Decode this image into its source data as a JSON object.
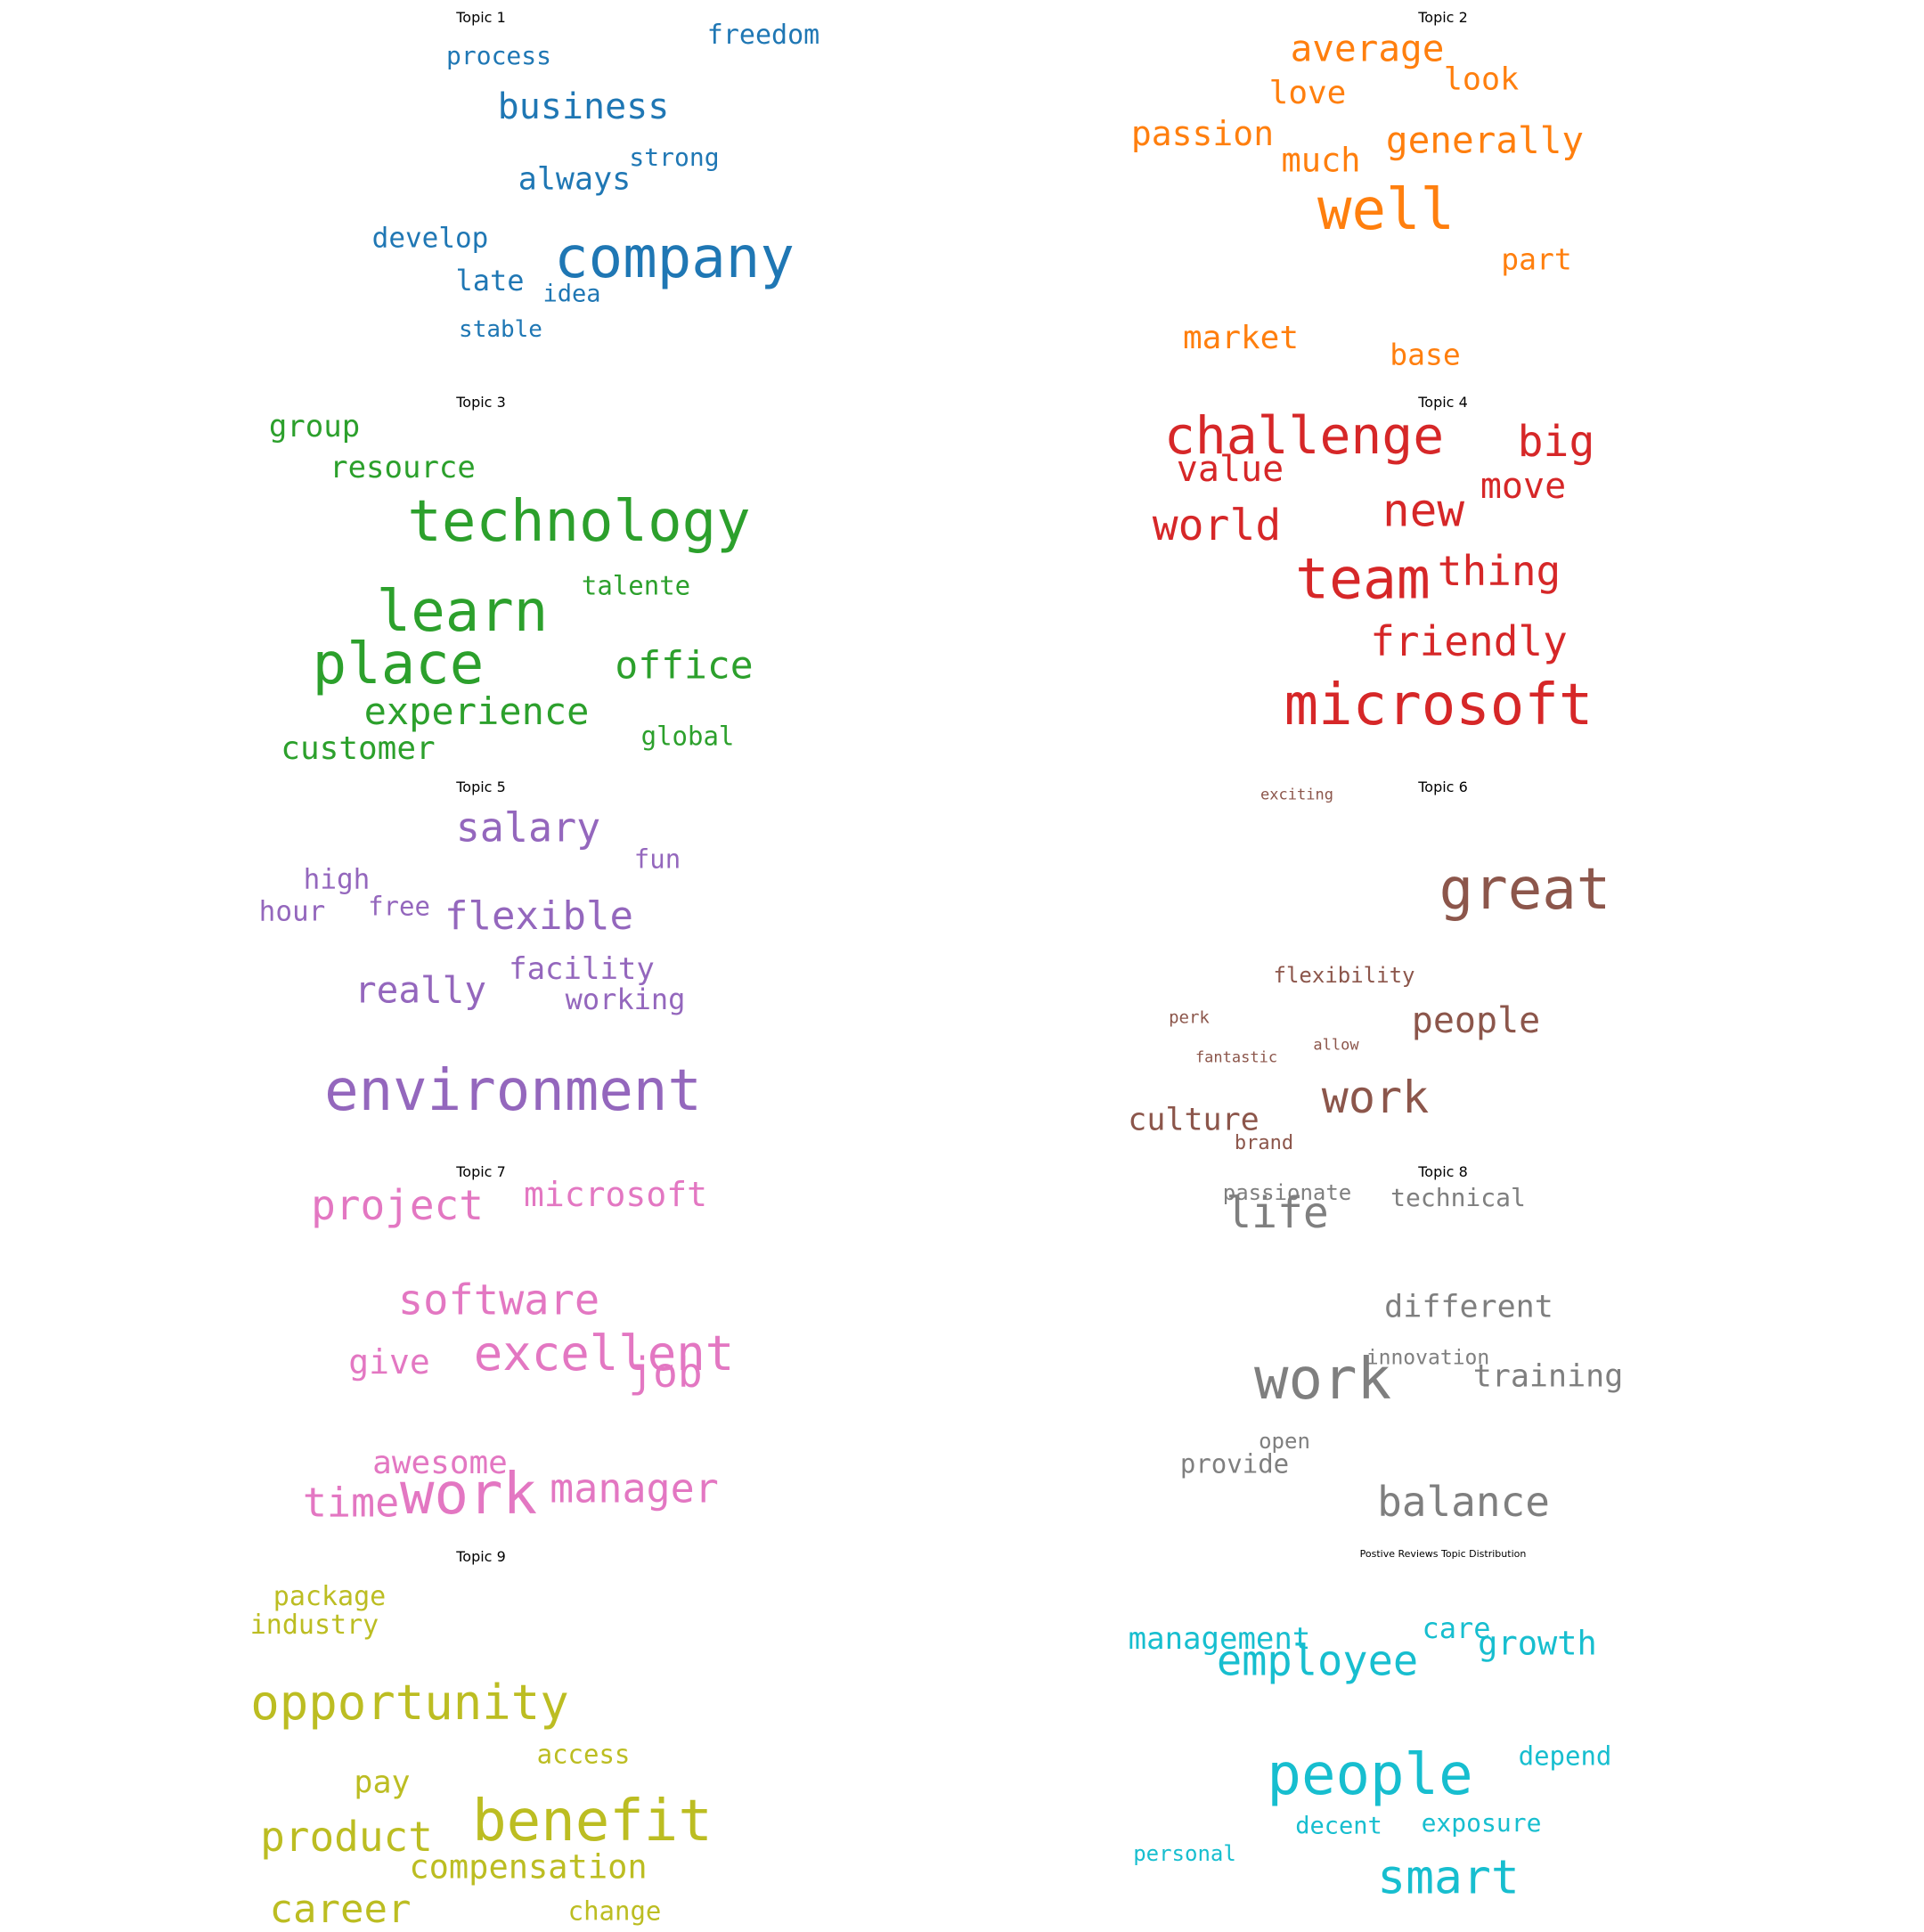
{
  "chart_data": {
    "type": "wordcloud",
    "panels": [
      {
        "title": "Topic 1",
        "color": "#1f77b4",
        "words": [
          {
            "text": "company",
            "weight": 1.0
          },
          {
            "text": "business",
            "weight": 0.62
          },
          {
            "text": "always",
            "weight": 0.55
          },
          {
            "text": "freedom",
            "weight": 0.47
          },
          {
            "text": "process",
            "weight": 0.44
          },
          {
            "text": "strong",
            "weight": 0.44
          },
          {
            "text": "develop",
            "weight": 0.48
          },
          {
            "text": "late",
            "weight": 0.5
          },
          {
            "text": "idea",
            "weight": 0.42
          },
          {
            "text": "stable",
            "weight": 0.4
          }
        ]
      },
      {
        "title": "Topic 2",
        "color": "#ff7f0e",
        "words": [
          {
            "text": "well",
            "weight": 1.0
          },
          {
            "text": "average",
            "weight": 0.64
          },
          {
            "text": "generally",
            "weight": 0.64
          },
          {
            "text": "passion",
            "weight": 0.6
          },
          {
            "text": "much",
            "weight": 0.58
          },
          {
            "text": "love",
            "weight": 0.57
          },
          {
            "text": "look",
            "weight": 0.55
          },
          {
            "text": "market",
            "weight": 0.56
          },
          {
            "text": "part",
            "weight": 0.52
          },
          {
            "text": "base",
            "weight": 0.52
          }
        ]
      },
      {
        "title": "Topic 3",
        "color": "#2ca02c",
        "words": [
          {
            "text": "technology",
            "weight": 1.0
          },
          {
            "text": "learn",
            "weight": 1.0
          },
          {
            "text": "place",
            "weight": 1.0
          },
          {
            "text": "office",
            "weight": 0.67
          },
          {
            "text": "experience",
            "weight": 0.66
          },
          {
            "text": "customer",
            "weight": 0.57
          },
          {
            "text": "group",
            "weight": 0.53
          },
          {
            "text": "resource",
            "weight": 0.53
          },
          {
            "text": "talente",
            "weight": 0.46
          },
          {
            "text": "global",
            "weight": 0.45
          }
        ]
      },
      {
        "title": "Topic 4",
        "color": "#d62728",
        "words": [
          {
            "text": "microsoft",
            "weight": 1.0
          },
          {
            "text": "team",
            "weight": 0.98
          },
          {
            "text": "challenge",
            "weight": 0.9
          },
          {
            "text": "new",
            "weight": 0.8
          },
          {
            "text": "big",
            "weight": 0.75
          },
          {
            "text": "world",
            "weight": 0.75
          },
          {
            "text": "thing",
            "weight": 0.72
          },
          {
            "text": "friendly",
            "weight": 0.72
          },
          {
            "text": "value",
            "weight": 0.62
          },
          {
            "text": "move",
            "weight": 0.62
          }
        ]
      },
      {
        "title": "Topic 5",
        "color": "#9467bd",
        "words": [
          {
            "text": "environment",
            "weight": 1.0
          },
          {
            "text": "salary",
            "weight": 0.7
          },
          {
            "text": "flexible",
            "weight": 0.68
          },
          {
            "text": "really",
            "weight": 0.64
          },
          {
            "text": "facility",
            "weight": 0.53
          },
          {
            "text": "working",
            "weight": 0.5
          },
          {
            "text": "high",
            "weight": 0.48
          },
          {
            "text": "hour",
            "weight": 0.48
          },
          {
            "text": "free",
            "weight": 0.45
          },
          {
            "text": "fun",
            "weight": 0.45
          }
        ]
      },
      {
        "title": "Topic 6",
        "color": "#8c564b",
        "words": [
          {
            "text": "great",
            "weight": 1.0
          },
          {
            "text": "work",
            "weight": 0.78
          },
          {
            "text": "people",
            "weight": 0.62
          },
          {
            "text": "culture",
            "weight": 0.55
          },
          {
            "text": "flexibility",
            "weight": 0.38
          },
          {
            "text": "brand",
            "weight": 0.34
          },
          {
            "text": "perk",
            "weight": 0.3
          },
          {
            "text": "allow",
            "weight": 0.27
          },
          {
            "text": "fantastic",
            "weight": 0.27
          },
          {
            "text": "exciting",
            "weight": 0.26
          }
        ]
      },
      {
        "title": "Topic 7",
        "color": "#e377c2",
        "words": [
          {
            "text": "work",
            "weight": 1.0
          },
          {
            "text": "excellent",
            "weight": 0.85
          },
          {
            "text": "software",
            "weight": 0.73
          },
          {
            "text": "project",
            "weight": 0.72
          },
          {
            "text": "job",
            "weight": 0.72
          },
          {
            "text": "time",
            "weight": 0.7
          },
          {
            "text": "manager",
            "weight": 0.7
          },
          {
            "text": "microsoft",
            "weight": 0.6
          },
          {
            "text": "give",
            "weight": 0.6
          },
          {
            "text": "awesome",
            "weight": 0.56
          }
        ]
      },
      {
        "title": "Topic 8",
        "color": "#7f7f7f",
        "words": [
          {
            "text": "work",
            "weight": 1.0
          },
          {
            "text": "life",
            "weight": 0.75
          },
          {
            "text": "balance",
            "weight": 0.72
          },
          {
            "text": "training",
            "weight": 0.55
          },
          {
            "text": "different",
            "weight": 0.55
          },
          {
            "text": "provide",
            "weight": 0.45
          },
          {
            "text": "technical",
            "weight": 0.43
          },
          {
            "text": "passionate",
            "weight": 0.38
          },
          {
            "text": "open",
            "weight": 0.38
          },
          {
            "text": "innovation",
            "weight": 0.36
          }
        ]
      },
      {
        "title": "Topic 9",
        "color": "#bcbd22",
        "words": [
          {
            "text": "benefit",
            "weight": 1.0
          },
          {
            "text": "opportunity",
            "weight": 0.85
          },
          {
            "text": "product",
            "weight": 0.72
          },
          {
            "text": "career",
            "weight": 0.68
          },
          {
            "text": "compensation",
            "weight": 0.58
          },
          {
            "text": "pay",
            "weight": 0.55
          },
          {
            "text": "package",
            "weight": 0.47
          },
          {
            "text": "industry",
            "weight": 0.47
          },
          {
            "text": "access",
            "weight": 0.46
          },
          {
            "text": "change",
            "weight": 0.45
          }
        ]
      },
      {
        "title": "Postive Reviews Topic Distribution",
        "color": "#17becf",
        "words": [
          {
            "text": "people",
            "weight": 1.0
          },
          {
            "text": "smart",
            "weight": 0.83
          },
          {
            "text": "employee",
            "weight": 0.74
          },
          {
            "text": "growth",
            "weight": 0.58
          },
          {
            "text": "management",
            "weight": 0.53
          },
          {
            "text": "care",
            "weight": 0.5
          },
          {
            "text": "depend",
            "weight": 0.45
          },
          {
            "text": "exposure",
            "weight": 0.43
          },
          {
            "text": "decent",
            "weight": 0.42
          },
          {
            "text": "personal",
            "weight": 0.38
          }
        ]
      }
    ]
  }
}
